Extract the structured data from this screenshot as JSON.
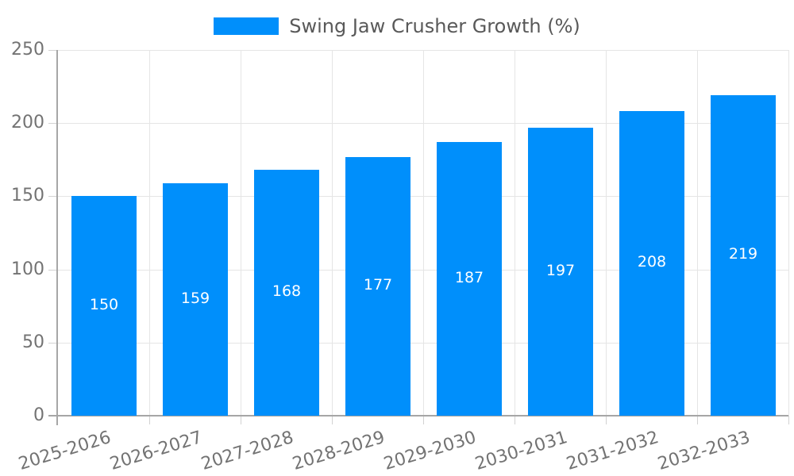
{
  "legend": {
    "label": "Swing Jaw Crusher Growth (%)"
  },
  "colors": {
    "bar": "#008ffb",
    "data_label": "#ffffff",
    "grid": "#e5e5e5",
    "axis_line": "#a6a6a6",
    "tick": "#d2d2d2",
    "axis_label": "#737373",
    "legend_label": "#595959",
    "background": "#ffffff"
  },
  "chart_data": {
    "type": "bar",
    "title": "",
    "series_name": "Swing Jaw Crusher Growth (%)",
    "categories": [
      "2025-2026",
      "2026-2027",
      "2027-2028",
      "2028-2029",
      "2029-2030",
      "2030-2031",
      "2031-2032",
      "2032-2033"
    ],
    "values": [
      150,
      159,
      168,
      177,
      187,
      197,
      208,
      219
    ],
    "xlabel": "",
    "ylabel": "",
    "ylim": [
      0,
      250
    ],
    "yticks": [
      0,
      50,
      100,
      150,
      200,
      250
    ],
    "grid": true,
    "legend_position": "top",
    "data_labels": "inside-center"
  }
}
